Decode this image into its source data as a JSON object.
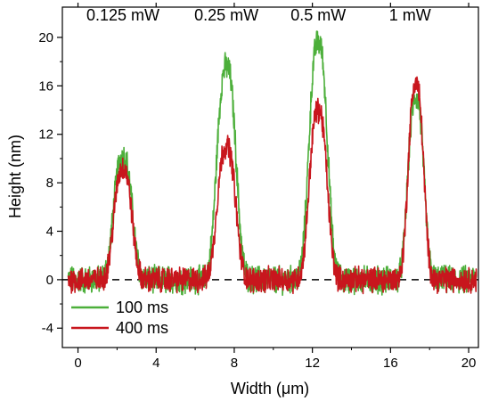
{
  "chart_data": {
    "type": "line",
    "xlabel": "Width (μm)",
    "ylabel": "Height (nm)",
    "xlim": [
      -0.8,
      20.5
    ],
    "ylim": [
      -5.6,
      22.5
    ],
    "xticks": [
      0,
      4,
      8,
      12,
      16,
      20
    ],
    "yticks": [
      -4,
      0,
      4,
      8,
      12,
      16,
      20
    ],
    "grid": false,
    "legend_position": "bottom-left",
    "reference_line": {
      "y": 0,
      "style": "dashed",
      "color": "#000000"
    },
    "annotations": [
      {
        "text": "0.125 mW",
        "x": 2.3,
        "y": 21.4
      },
      {
        "text": "0.25 mW",
        "x": 7.6,
        "y": 21.4
      },
      {
        "text": "0.5 mW",
        "x": 12.3,
        "y": 21.4
      },
      {
        "text": "1 mW",
        "x": 17.0,
        "y": 21.4
      }
    ],
    "series": [
      {
        "name": "100 ms",
        "color": "#4caf3a",
        "peaks": [
          {
            "center": 2.3,
            "height": 10.2,
            "width": 0.6
          },
          {
            "center": 7.6,
            "height": 17.6,
            "width": 0.62
          },
          {
            "center": 12.3,
            "height": 19.6,
            "width": 0.6
          },
          {
            "center": 17.3,
            "height": 15.0,
            "width": 0.52
          }
        ],
        "noise_amplitude": 1.0
      },
      {
        "name": "400 ms",
        "color": "#c8161d",
        "peaks": [
          {
            "center": 2.3,
            "height": 9.2,
            "width": 0.58
          },
          {
            "center": 7.6,
            "height": 11.0,
            "width": 0.6
          },
          {
            "center": 12.3,
            "height": 14.0,
            "width": 0.58
          },
          {
            "center": 17.3,
            "height": 16.2,
            "width": 0.5
          }
        ],
        "noise_amplitude": 0.9
      }
    ]
  }
}
